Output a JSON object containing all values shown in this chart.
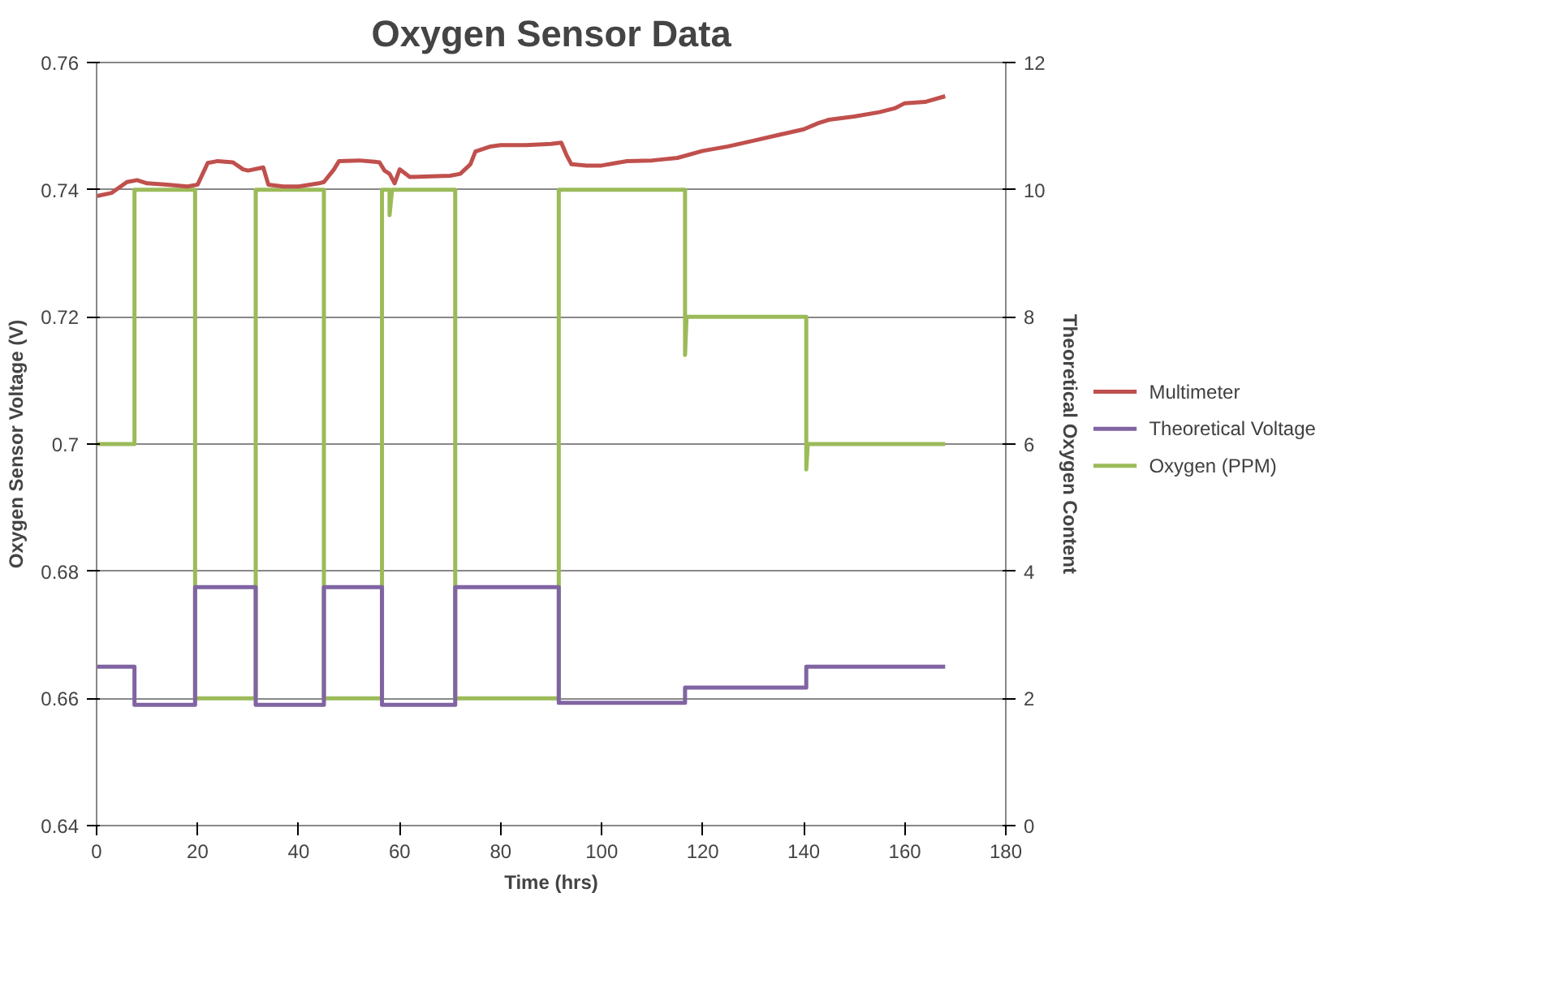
{
  "chart_data": {
    "type": "line",
    "title": "Oxygen Sensor Data",
    "xlabel": "Time (hrs)",
    "ylabel": "Oxygen Sensor Voltage (V)",
    "y2label": "Theoretical Oxygen Content",
    "xlim": [
      0,
      180
    ],
    "xticks": [
      0,
      20,
      40,
      60,
      80,
      100,
      120,
      140,
      160,
      180
    ],
    "ylim": [
      0.64,
      0.76
    ],
    "yticks": [
      0.64,
      0.66,
      0.68,
      0.7,
      0.72,
      0.74,
      0.76
    ],
    "y2lim": [
      0,
      12
    ],
    "y2ticks": [
      0,
      2,
      4,
      6,
      8,
      10,
      12
    ],
    "grid": "y",
    "legend": "right",
    "marker": "none",
    "line_style": "solid",
    "series": [
      {
        "name": "Multimeter",
        "color": "#c0504d",
        "x": [
          0,
          3,
          6,
          8,
          10,
          14,
          18,
          20,
          22,
          24,
          27,
          29,
          30,
          33,
          34,
          37,
          40,
          44,
          45,
          47,
          48,
          52,
          55,
          56,
          57,
          58,
          59,
          60,
          62,
          66,
          70,
          72,
          74,
          75,
          78,
          80,
          85,
          90,
          92,
          93,
          94,
          97,
          100,
          105,
          110,
          115,
          120,
          125,
          130,
          135,
          140,
          143,
          145,
          150,
          155,
          158,
          160,
          164,
          168
        ],
        "values": [
          0.739,
          0.7395,
          0.7412,
          0.7415,
          0.741,
          0.7408,
          0.7405,
          0.7408,
          0.7442,
          0.7445,
          0.7443,
          0.7432,
          0.743,
          0.7435,
          0.7408,
          0.7405,
          0.7405,
          0.741,
          0.7412,
          0.7432,
          0.7445,
          0.7446,
          0.7444,
          0.7443,
          0.743,
          0.7425,
          0.741,
          0.7432,
          0.742,
          0.7421,
          0.7422,
          0.7425,
          0.744,
          0.746,
          0.7468,
          0.747,
          0.747,
          0.7472,
          0.7474,
          0.7455,
          0.744,
          0.7438,
          0.7438,
          0.7445,
          0.7446,
          0.745,
          0.7461,
          0.7468,
          0.7477,
          0.7486,
          0.7495,
          0.7505,
          0.751,
          0.7515,
          0.7522,
          0.7528,
          0.7536,
          0.7538,
          0.7547
        ]
      },
      {
        "name": "Theoretical Voltage",
        "color": "#8064a2",
        "x": [
          0,
          7.5,
          7.5,
          19.5,
          19.5,
          31.5,
          31.5,
          45,
          45,
          56.5,
          56.5,
          71,
          71,
          91.5,
          91.5,
          116.5,
          116.5,
          140.5,
          140.5,
          168
        ],
        "values": [
          0.665,
          0.665,
          0.659,
          0.659,
          0.6775,
          0.6775,
          0.659,
          0.659,
          0.6775,
          0.6775,
          0.659,
          0.659,
          0.6775,
          0.6775,
          0.6593,
          0.6593,
          0.6617,
          0.6617,
          0.665,
          0.665
        ]
      },
      {
        "name": "Oxygen (PPM)",
        "color": "#9bbb59",
        "axis": "y2",
        "x": [
          0,
          7.5,
          7.5,
          19.5,
          19.5,
          31.5,
          31.5,
          45,
          45,
          56.5,
          56.5,
          58,
          58,
          58.5,
          71,
          71,
          91.5,
          91.5,
          116.5,
          116.5,
          116.8,
          140.5,
          140.5,
          140.8,
          168
        ],
        "values": [
          6,
          6,
          10,
          10,
          2,
          2,
          10,
          10,
          2,
          2,
          10,
          10,
          9.6,
          10,
          10,
          2,
          2,
          10,
          10,
          7.4,
          8,
          8,
          5.6,
          6,
          6
        ]
      }
    ]
  }
}
